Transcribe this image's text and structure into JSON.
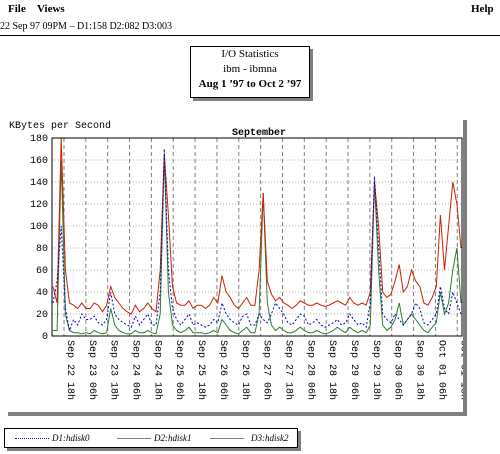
{
  "menubar": {
    "file": "File",
    "views": "Views",
    "help": "Help"
  },
  "status_line": "22 Sep 97 09PM – D1:158 D2:082 D3:003",
  "title_box": {
    "line1": "I/O Statistics",
    "line2": "ibm - ibmna",
    "line3": "Aug 1 ’97 to Oct 2 ’97"
  },
  "colors": {
    "disk0": "#0000cc",
    "disk1": "#cc2200",
    "disk2": "#2e7d32",
    "grid": "#808080"
  },
  "chart_data": {
    "type": "line",
    "ylabel": "KBytes per Second",
    "month_label": "September",
    "ylim": [
      0,
      180
    ],
    "y_ticks": [
      0,
      20,
      40,
      60,
      80,
      100,
      120,
      140,
      160,
      180
    ],
    "x_ticks": [
      "Sep 22 18h",
      "Sep 23 06h",
      "Sep 23 18h",
      "Sep 24 06h",
      "Sep 24 18h",
      "Sep 25 06h",
      "Sep 25 18h",
      "Sep 26 06h",
      "Sep 26 18h",
      "Sep 27 06h",
      "Sep 27 18h",
      "Sep 28 06h",
      "Sep 28 18h",
      "Sep 29 06h",
      "Sep 29 18h",
      "Sep 30 06h",
      "Sep 30 18h",
      "Oct 01 06h",
      "Oct 01 18h"
    ],
    "grid": true,
    "series": [
      {
        "name": "D1:hdisk0",
        "values": [
          30,
          50,
          100,
          25,
          5,
          15,
          10,
          20,
          15,
          15,
          18,
          12,
          10,
          15,
          40,
          20,
          15,
          12,
          10,
          8,
          18,
          10,
          15,
          20,
          10,
          10,
          40,
          170,
          60,
          25,
          15,
          10,
          15,
          20,
          10,
          12,
          10,
          8,
          10,
          15,
          12,
          30,
          20,
          15,
          12,
          10,
          18,
          20,
          10,
          10,
          20,
          15,
          12,
          20,
          30,
          25,
          20,
          12,
          10,
          15,
          20,
          18,
          10,
          12,
          15,
          10,
          8,
          10,
          12,
          15,
          10,
          12,
          20,
          15,
          10,
          12,
          8,
          30,
          145,
          80,
          20,
          15,
          12,
          20,
          15,
          10,
          15,
          20,
          30,
          25,
          12,
          10,
          15,
          20,
          45,
          25,
          20,
          40,
          30,
          20
        ]
      },
      {
        "name": "D2:hdisk1",
        "values": [
          45,
          30,
          180,
          60,
          30,
          28,
          25,
          30,
          25,
          25,
          30,
          28,
          22,
          28,
          45,
          35,
          30,
          25,
          22,
          20,
          28,
          22,
          25,
          30,
          25,
          22,
          60,
          165,
          110,
          45,
          30,
          28,
          28,
          32,
          25,
          28,
          28,
          25,
          28,
          35,
          30,
          55,
          40,
          35,
          28,
          25,
          30,
          35,
          28,
          28,
          60,
          130,
          50,
          38,
          32,
          35,
          30,
          28,
          25,
          28,
          32,
          30,
          28,
          28,
          30,
          28,
          27,
          28,
          30,
          32,
          30,
          28,
          35,
          30,
          28,
          30,
          28,
          40,
          140,
          100,
          40,
          35,
          38,
          50,
          65,
          40,
          45,
          60,
          50,
          45,
          30,
          28,
          35,
          45,
          110,
          60,
          100,
          140,
          120,
          80
        ]
      },
      {
        "name": "D3:hdisk2",
        "values": [
          5,
          5,
          160,
          20,
          5,
          3,
          3,
          2,
          3,
          2,
          5,
          3,
          2,
          3,
          25,
          10,
          5,
          3,
          2,
          2,
          5,
          3,
          3,
          5,
          3,
          2,
          20,
          165,
          40,
          10,
          5,
          3,
          5,
          8,
          3,
          3,
          3,
          2,
          3,
          5,
          3,
          15,
          10,
          5,
          3,
          2,
          5,
          8,
          3,
          3,
          20,
          130,
          30,
          10,
          5,
          8,
          5,
          3,
          3,
          5,
          8,
          5,
          3,
          3,
          5,
          3,
          2,
          3,
          5,
          8,
          5,
          3,
          8,
          5,
          3,
          5,
          3,
          10,
          140,
          60,
          10,
          5,
          8,
          15,
          30,
          10,
          15,
          20,
          15,
          10,
          5,
          3,
          8,
          12,
          40,
          20,
          30,
          60,
          80,
          30
        ]
      }
    ]
  }
}
